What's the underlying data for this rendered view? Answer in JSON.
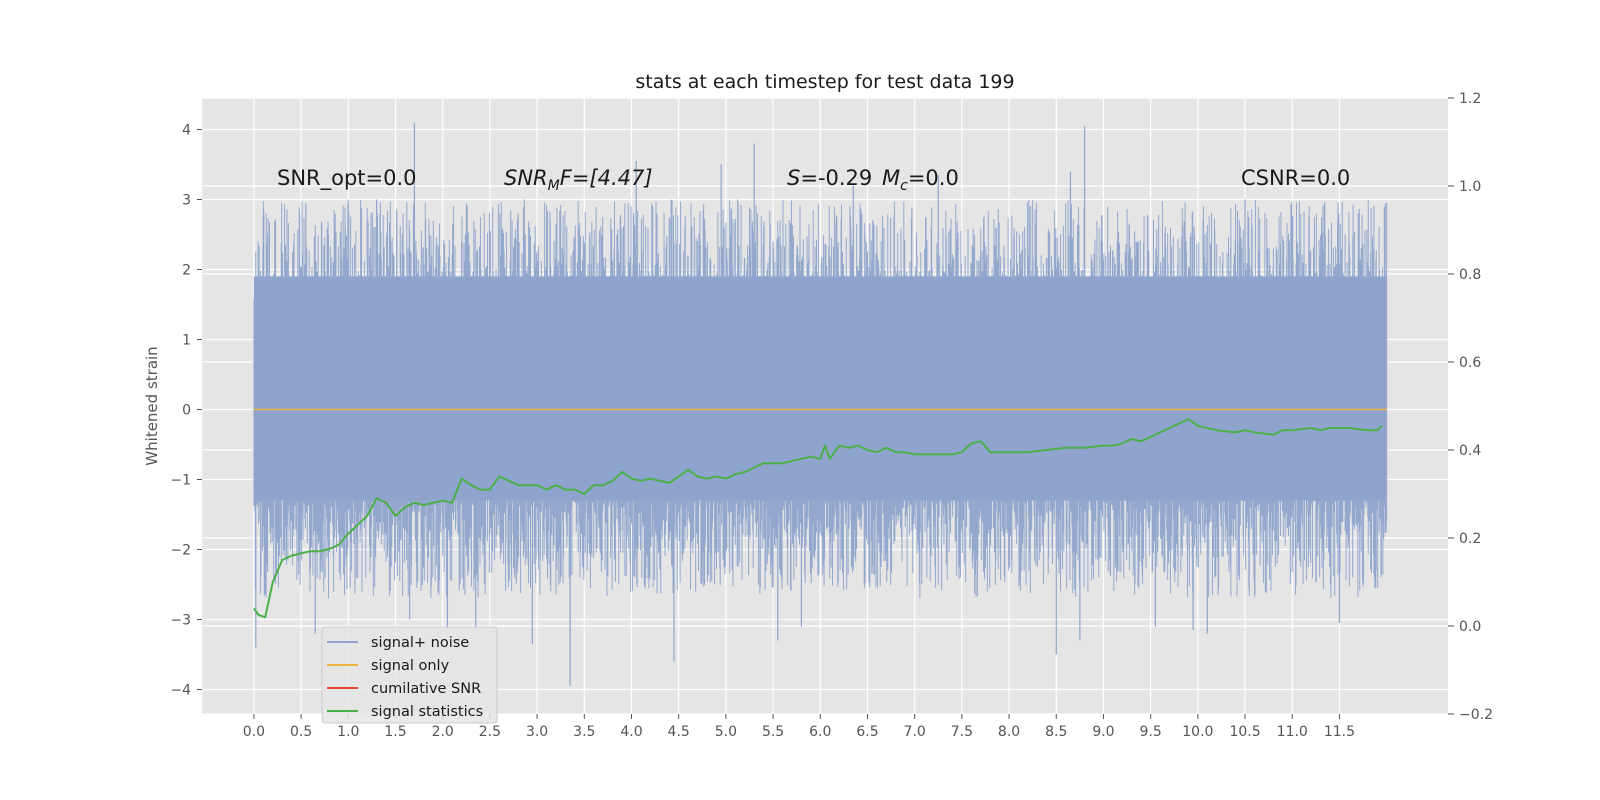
{
  "chart_data": {
    "type": "line",
    "title": "stats at each timestep for test data 199",
    "ylabel": "Whitened strain",
    "xlabel": "",
    "xlim": [
      -0.55,
      12.65
    ],
    "ylim": [
      -4.35,
      4.45
    ],
    "y2lim": [
      -0.2,
      1.2
    ],
    "x_ticks": [
      0.0,
      0.5,
      1.0,
      1.5,
      2.0,
      2.5,
      3.0,
      3.5,
      4.0,
      4.5,
      5.0,
      5.5,
      6.0,
      6.5,
      7.0,
      7.5,
      8.0,
      8.5,
      9.0,
      9.5,
      10.0,
      10.5,
      11.0,
      11.5
    ],
    "x_tick_labels": [
      "0.0",
      "0.5",
      "1.0",
      "1.5",
      "2.0",
      "2.5",
      "3.0",
      "3.5",
      "4.0",
      "4.5",
      "5.0",
      "5.5",
      "6.0",
      "6.5",
      "7.0",
      "7.5",
      "8.0",
      "8.5",
      "9.0",
      "9.5",
      "10.0",
      "10.5",
      "11.0",
      "11.5"
    ],
    "y_ticks": [
      -4,
      -3,
      -2,
      -1,
      0,
      1,
      2,
      3,
      4
    ],
    "y_tick_labels": [
      "−4",
      "−3",
      "−2",
      "−1",
      "0",
      "1",
      "2",
      "3",
      "4"
    ],
    "y2_ticks": [
      -0.2,
      0.0,
      0.2,
      0.4,
      0.6,
      0.8,
      1.0,
      1.2
    ],
    "y2_tick_labels": [
      "−0.2",
      "0.0",
      "0.2",
      "0.4",
      "0.6",
      "0.8",
      "1.0",
      "1.2"
    ],
    "grid": true,
    "legend_position": "lower-left",
    "annotations": {
      "snr_opt": "SNR_opt=0.0",
      "snr_mf_main": "SNR",
      "snr_mf_sub": "M",
      "snr_mf_rest": "F=[4.47]",
      "s_main": "S",
      "s_rest": "=-0.29",
      "mc_main": "M",
      "mc_sub": "c",
      "mc_rest": "=0.0",
      "csnr": "CSNR=0.0"
    },
    "series": [
      {
        "name": "signal+ noise",
        "color": "#8fa4cc",
        "axis": "left",
        "x_range": [
          0.0,
          12.0
        ],
        "envelope": "noise band",
        "outer_range": [
          -4.0,
          4.1
        ],
        "core_range": [
          -1.3,
          1.9
        ],
        "spikes": [
          {
            "x": 0.02,
            "y": -3.4
          },
          {
            "x": 0.1,
            "y": 2.75
          },
          {
            "x": 0.55,
            "y": 2.95
          },
          {
            "x": 0.65,
            "y": -3.2
          },
          {
            "x": 1.3,
            "y": 3.0
          },
          {
            "x": 1.7,
            "y": 4.1
          },
          {
            "x": 1.65,
            "y": -3.0
          },
          {
            "x": 2.05,
            "y": -3.15
          },
          {
            "x": 2.35,
            "y": -3.15
          },
          {
            "x": 2.95,
            "y": -3.35
          },
          {
            "x": 3.35,
            "y": -3.95
          },
          {
            "x": 4.05,
            "y": 3.55
          },
          {
            "x": 4.45,
            "y": -3.6
          },
          {
            "x": 4.95,
            "y": 3.5
          },
          {
            "x": 5.3,
            "y": 3.8
          },
          {
            "x": 5.55,
            "y": -3.3
          },
          {
            "x": 5.8,
            "y": -3.1
          },
          {
            "x": 6.35,
            "y": 3.2
          },
          {
            "x": 7.25,
            "y": 3.35
          },
          {
            "x": 8.5,
            "y": -3.5
          },
          {
            "x": 8.65,
            "y": 3.4
          },
          {
            "x": 8.8,
            "y": 4.05
          },
          {
            "x": 8.75,
            "y": -3.3
          },
          {
            "x": 9.55,
            "y": -3.1
          },
          {
            "x": 9.95,
            "y": -3.15
          },
          {
            "x": 10.1,
            "y": -3.2
          },
          {
            "x": 10.5,
            "y": 3.0
          },
          {
            "x": 11.5,
            "y": -3.05
          },
          {
            "x": 11.7,
            "y": 2.8
          }
        ]
      },
      {
        "name": "signal only",
        "color": "#f0b440",
        "axis": "left",
        "x": [
          0.0,
          12.0
        ],
        "y": [
          0.0,
          0.0
        ]
      },
      {
        "name": "cumilative SNR",
        "color": "#e24a33",
        "axis": "left",
        "x": [],
        "y": []
      },
      {
        "name": "signal statistics",
        "color": "#4daf4a",
        "axis": "right",
        "x": [
          0.0,
          0.05,
          0.12,
          0.2,
          0.3,
          0.4,
          0.5,
          0.6,
          0.7,
          0.8,
          0.9,
          1.0,
          1.1,
          1.2,
          1.3,
          1.4,
          1.5,
          1.6,
          1.7,
          1.8,
          1.9,
          2.0,
          2.1,
          2.2,
          2.3,
          2.4,
          2.5,
          2.6,
          2.7,
          2.8,
          2.9,
          3.0,
          3.1,
          3.2,
          3.3,
          3.4,
          3.5,
          3.6,
          3.7,
          3.8,
          3.9,
          4.0,
          4.1,
          4.2,
          4.3,
          4.4,
          4.5,
          4.6,
          4.7,
          4.8,
          4.9,
          5.0,
          5.1,
          5.2,
          5.3,
          5.4,
          5.5,
          5.6,
          5.7,
          5.8,
          5.9,
          6.0,
          6.05,
          6.1,
          6.2,
          6.3,
          6.4,
          6.5,
          6.6,
          6.7,
          6.8,
          6.9,
          7.0,
          7.1,
          7.2,
          7.3,
          7.4,
          7.5,
          7.6,
          7.7,
          7.8,
          8.0,
          8.2,
          8.4,
          8.6,
          8.8,
          9.0,
          9.1,
          9.2,
          9.3,
          9.4,
          9.5,
          9.6,
          9.7,
          9.8,
          9.9,
          10.0,
          10.2,
          10.4,
          10.5,
          10.6,
          10.8,
          10.9,
          11.0,
          11.2,
          11.3,
          11.4,
          11.6,
          11.8,
          11.9,
          11.95
        ],
        "y": [
          0.04,
          0.025,
          0.02,
          0.1,
          0.15,
          0.16,
          0.165,
          0.17,
          0.17,
          0.175,
          0.185,
          0.21,
          0.23,
          0.25,
          0.29,
          0.28,
          0.25,
          0.27,
          0.28,
          0.275,
          0.28,
          0.285,
          0.28,
          0.335,
          0.32,
          0.31,
          0.31,
          0.34,
          0.33,
          0.32,
          0.32,
          0.32,
          0.31,
          0.32,
          0.31,
          0.31,
          0.3,
          0.32,
          0.32,
          0.33,
          0.35,
          0.335,
          0.33,
          0.335,
          0.33,
          0.325,
          0.34,
          0.355,
          0.34,
          0.335,
          0.34,
          0.335,
          0.345,
          0.35,
          0.36,
          0.37,
          0.37,
          0.37,
          0.375,
          0.38,
          0.385,
          0.38,
          0.41,
          0.38,
          0.41,
          0.405,
          0.41,
          0.4,
          0.395,
          0.405,
          0.395,
          0.395,
          0.39,
          0.39,
          0.39,
          0.39,
          0.39,
          0.395,
          0.415,
          0.42,
          0.395,
          0.395,
          0.395,
          0.4,
          0.405,
          0.405,
          0.41,
          0.41,
          0.415,
          0.425,
          0.42,
          0.43,
          0.44,
          0.45,
          0.46,
          0.47,
          0.455,
          0.445,
          0.44,
          0.445,
          0.44,
          0.435,
          0.445,
          0.445,
          0.45,
          0.445,
          0.45,
          0.45,
          0.445,
          0.445,
          0.455
        ]
      }
    ]
  }
}
